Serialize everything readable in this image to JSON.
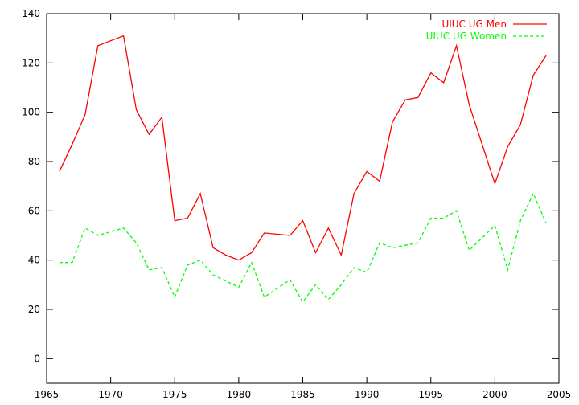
{
  "chart_data": {
    "type": "line",
    "title": "",
    "xlabel": "",
    "ylabel": "",
    "xlim": [
      1965,
      2005
    ],
    "ylim": [
      -10,
      140
    ],
    "xticks": [
      1965,
      1970,
      1975,
      1980,
      1985,
      1990,
      1995,
      2000,
      2005
    ],
    "yticks": [
      0,
      20,
      40,
      60,
      80,
      100,
      120,
      140
    ],
    "grid": false,
    "legend_position": "top-right",
    "x": [
      1966,
      1967,
      1968,
      1969,
      1970,
      1971,
      1972,
      1973,
      1974,
      1975,
      1976,
      1977,
      1978,
      1979,
      1980,
      1981,
      1982,
      1983,
      1984,
      1985,
      1986,
      1987,
      1988,
      1989,
      1990,
      1991,
      1992,
      1993,
      1994,
      1995,
      1996,
      1997,
      1998,
      1999,
      2000,
      2001,
      2002,
      2003,
      2004
    ],
    "series": [
      {
        "name": "UIUC UG Men",
        "color": "#ff0000",
        "dash": "solid",
        "values": [
          76,
          87,
          99,
          127,
          129,
          131,
          101,
          91,
          98,
          56,
          57,
          67,
          45,
          42,
          40,
          43,
          51,
          null,
          50,
          56,
          43,
          53,
          42,
          67,
          76,
          72,
          96,
          105,
          106,
          116,
          112,
          127,
          103,
          null,
          71,
          86,
          95,
          115,
          123
        ]
      },
      {
        "name": "UIUC UG Women",
        "color": "#00ff00",
        "dash": "dashed",
        "values": [
          39,
          39,
          53,
          50,
          null,
          53,
          47,
          36,
          37,
          25,
          38,
          40,
          34,
          null,
          29,
          39,
          25,
          null,
          32,
          23,
          30,
          24,
          30,
          37,
          35,
          47,
          45,
          null,
          47,
          57,
          57,
          60,
          44,
          null,
          54,
          36,
          56,
          67,
          55
        ]
      }
    ]
  }
}
